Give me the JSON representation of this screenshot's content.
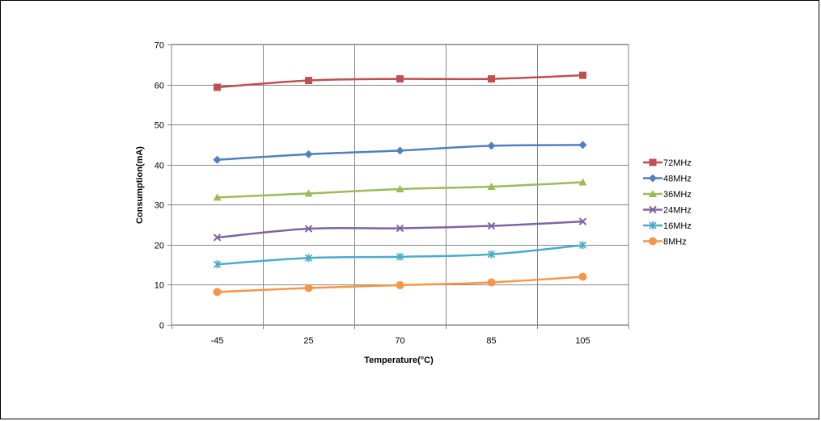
{
  "chart_data": {
    "type": "line",
    "title": "",
    "xlabel": "Temperature(°C)",
    "ylabel": "Consumption(mA)",
    "categories": [
      "-45",
      "25",
      "70",
      "85",
      "105"
    ],
    "ylim": [
      0,
      70
    ],
    "yticks": [
      "0",
      "10",
      "20",
      "30",
      "40",
      "50",
      "60",
      "70"
    ],
    "grid": true,
    "legend_position": "right",
    "series": [
      {
        "name": "72MHz",
        "color": "#C0504D",
        "marker": "square",
        "values": [
          59.3,
          61.0,
          61.4,
          61.4,
          62.3
        ]
      },
      {
        "name": "48MHz",
        "color": "#4F81BD",
        "marker": "diamond",
        "values": [
          41.2,
          42.6,
          43.5,
          44.7,
          44.9
        ]
      },
      {
        "name": "36MHz",
        "color": "#9BBB59",
        "marker": "triangle",
        "values": [
          31.8,
          32.8,
          33.9,
          34.5,
          35.6
        ]
      },
      {
        "name": "24MHz",
        "color": "#8064A2",
        "marker": "x",
        "values": [
          21.8,
          24.0,
          24.1,
          24.7,
          25.8
        ]
      },
      {
        "name": "16MHz",
        "color": "#4BACC6",
        "marker": "star",
        "values": [
          15.1,
          16.7,
          17.0,
          17.6,
          19.9
        ]
      },
      {
        "name": "8MHz",
        "color": "#F79646",
        "marker": "circle",
        "values": [
          8.2,
          9.2,
          9.9,
          10.6,
          12.0
        ]
      }
    ]
  }
}
